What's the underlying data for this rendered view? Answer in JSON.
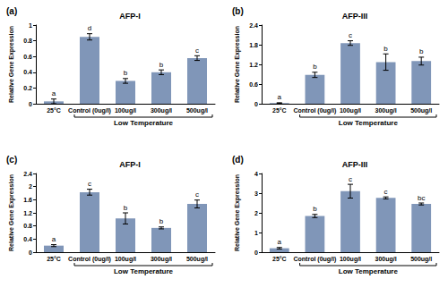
{
  "chart_data": [
    {
      "type": "bar",
      "panel": "(a)",
      "title": "AFP-I",
      "y_label": "Relative Gene Expression",
      "categories": [
        "25°C",
        "Control (0ug/l)",
        "100ug/l",
        "300ug/l",
        "500ug/l"
      ],
      "values": [
        0.03,
        0.85,
        0.29,
        0.4,
        0.58
      ],
      "errors": [
        0.03,
        0.04,
        0.03,
        0.03,
        0.03
      ],
      "annotations": [
        "a",
        "d",
        "b",
        "b",
        "c"
      ],
      "group_label": "Low Temperature",
      "color": "#8096b8",
      "ylim": [
        0,
        1
      ],
      "yticks": [
        0,
        0.2,
        0.4,
        0.6,
        0.8,
        1
      ],
      "grid": false
    },
    {
      "type": "bar",
      "panel": "(b)",
      "title": "AFP-III",
      "y_label": "Relative Gene Expression",
      "categories": [
        "25°C",
        "Control (0ug/l)",
        "100ug/l",
        "300ug/l",
        "500ug/l"
      ],
      "values": [
        0.02,
        0.88,
        1.85,
        1.27,
        1.3
      ],
      "errors": [
        0.01,
        0.08,
        0.07,
        0.25,
        0.12
      ],
      "annotations": [
        "a",
        "b",
        "c",
        "b",
        "b"
      ],
      "group_label": "Low Temperature",
      "color": "#8096b8",
      "ylim": [
        0,
        2.4
      ],
      "yticks": [
        0,
        0.6,
        1.2,
        1.8,
        2.4
      ],
      "grid": false
    },
    {
      "type": "bar",
      "panel": "(c)",
      "title": "AFP-I",
      "y_label": "Relative Gene Expression",
      "categories": [
        "25°C",
        "Control (0ug/l)",
        "100ug/l",
        "300ug/l",
        "500ug/l"
      ],
      "values": [
        0.2,
        1.83,
        1.03,
        0.74,
        1.47
      ],
      "errors": [
        0.03,
        0.09,
        0.17,
        0.03,
        0.12
      ],
      "annotations": [
        "a",
        "c",
        "b",
        "b",
        "c"
      ],
      "group_label": "Low Temperature",
      "color": "#8096b8",
      "ylim": [
        0,
        2.4
      ],
      "yticks": [
        0,
        0.4,
        0.8,
        1.2,
        1.6,
        2,
        2.4
      ],
      "grid": false
    },
    {
      "type": "bar",
      "panel": "(d)",
      "title": "AFP-III",
      "y_label": "Relative Gene Expression",
      "categories": [
        "25°C",
        "Control (0ug/l)",
        "100ug/l",
        "300ug/l",
        "500ug/l"
      ],
      "values": [
        0.2,
        1.84,
        3.1,
        2.76,
        2.45
      ],
      "errors": [
        0.04,
        0.08,
        0.35,
        0.05,
        0.05
      ],
      "annotations": [
        "a",
        "b",
        "c",
        "c",
        "bc"
      ],
      "group_label": "Low Temperature",
      "color": "#8096b8",
      "ylim": [
        0,
        4
      ],
      "yticks": [
        0,
        1,
        2,
        3,
        4
      ],
      "grid": false
    }
  ]
}
